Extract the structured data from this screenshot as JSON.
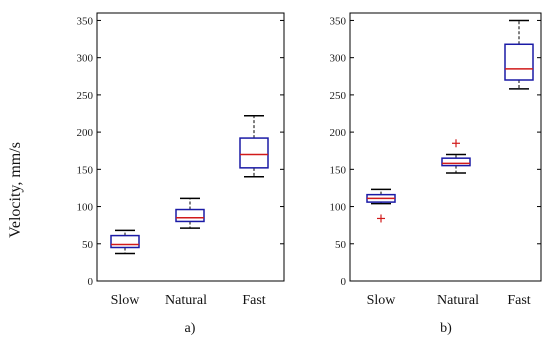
{
  "ylabel": "Velocity, mm/s",
  "colors": {
    "box": "#1a1aa6",
    "median": "#d11a1a",
    "whisker": "#000000",
    "outlier": "#d11a1a"
  },
  "chart_data": [
    {
      "type": "box",
      "panel_label": "a)",
      "categories": [
        "Slow",
        "Natural",
        "Fast"
      ],
      "ylim": [
        0,
        360
      ],
      "yticks": [
        0,
        50,
        100,
        150,
        200,
        250,
        300,
        350
      ],
      "boxes": [
        {
          "category": "Slow",
          "min": 37,
          "q1": 45,
          "median": 49,
          "q3": 61,
          "max": 68,
          "outliers": []
        },
        {
          "category": "Natural",
          "min": 71,
          "q1": 80,
          "median": 85,
          "q3": 96,
          "max": 111,
          "outliers": []
        },
        {
          "category": "Fast",
          "min": 140,
          "q1": 152,
          "median": 170,
          "q3": 192,
          "max": 222,
          "outliers": []
        }
      ]
    },
    {
      "type": "box",
      "panel_label": "b)",
      "categories": [
        "Slow",
        "Natural",
        "Fast"
      ],
      "ylim": [
        0,
        360
      ],
      "yticks": [
        0,
        50,
        100,
        150,
        200,
        250,
        300,
        350
      ],
      "boxes": [
        {
          "category": "Slow",
          "min": 104,
          "q1": 106,
          "median": 111,
          "q3": 116,
          "max": 123,
          "outliers": [
            84
          ]
        },
        {
          "category": "Natural",
          "min": 145,
          "q1": 155,
          "median": 158,
          "q3": 165,
          "max": 170,
          "outliers": [
            185
          ]
        },
        {
          "category": "Fast",
          "min": 258,
          "q1": 270,
          "median": 285,
          "q3": 318,
          "max": 350,
          "outliers": []
        }
      ]
    }
  ]
}
